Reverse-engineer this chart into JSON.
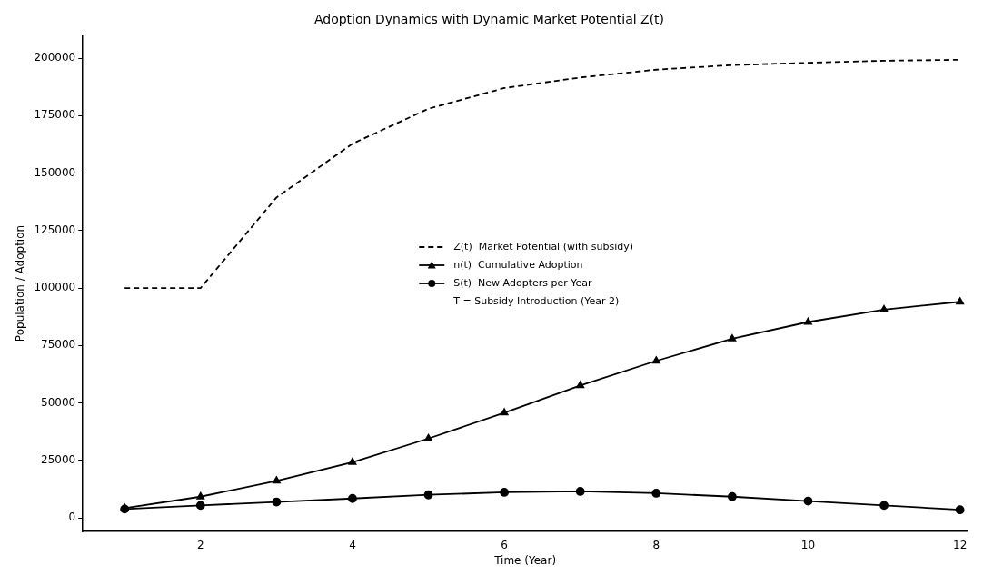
{
  "chart_data": {
    "type": "line",
    "title": "Adoption Dynamics with Dynamic Market Potential Z(t)",
    "xlabel": "Time (Year)",
    "ylabel": "Population / Adoption",
    "x": [
      1,
      2,
      3,
      4,
      5,
      6,
      7,
      8,
      9,
      10,
      11,
      12
    ],
    "series": [
      {
        "name": "Z(t)  Market Potential (with subsidy)",
        "color": "#000000",
        "line_style": "dashed",
        "marker": "none",
        "values": [
          100000,
          100000,
          139400,
          162800,
          178000,
          187000,
          191600,
          195000,
          197000,
          198000,
          198900,
          199300
        ]
      },
      {
        "name": "n(t)  Cumulative Adoption",
        "color": "#000000",
        "line_style": "solid",
        "marker": "triangle",
        "values": [
          4200,
          9200,
          16100,
          24200,
          34500,
          45700,
          57600,
          68300,
          77900,
          85200,
          90600,
          94000
        ]
      },
      {
        "name": "S(t)  New Adopters per Year",
        "color": "#000000",
        "line_style": "solid",
        "marker": "circle",
        "values": [
          3800,
          5400,
          6900,
          8400,
          10000,
          11100,
          11500,
          10700,
          9200,
          7300,
          5400,
          3500
        ]
      }
    ],
    "annotations": [
      "T = Subsidy Introduction (Year 2)"
    ],
    "xlim": [
      0.45,
      12.1
    ],
    "xticks": [
      2,
      4,
      6,
      8,
      10,
      12
    ],
    "ylim": [
      -6000,
      210000
    ],
    "yticks": [
      0,
      25000,
      50000,
      75000,
      100000,
      125000,
      150000,
      175000,
      200000
    ],
    "grid": false,
    "legend": "center"
  }
}
